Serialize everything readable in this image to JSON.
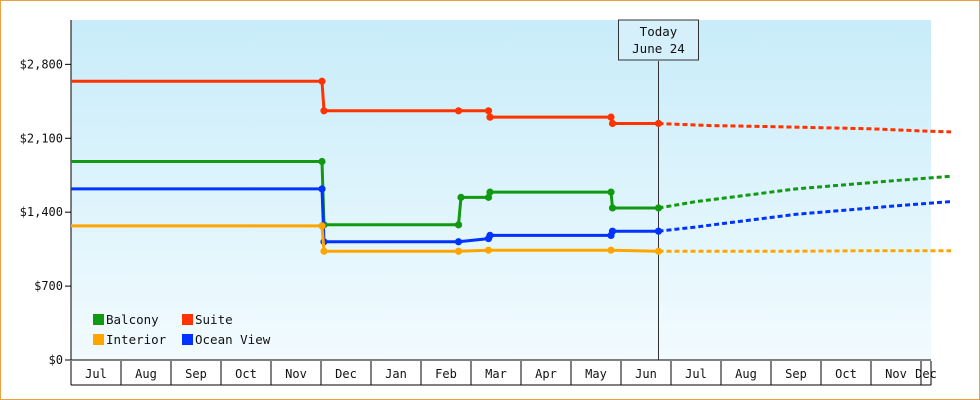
{
  "chart_data": {
    "type": "line",
    "title": "",
    "xlabel": "",
    "ylabel": "",
    "grid": false,
    "legend_placement": "bottom-left",
    "ylim": [
      0,
      3220
    ],
    "y_ticks": [
      {
        "value": 0,
        "label": "$0"
      },
      {
        "value": 700,
        "label": "$700"
      },
      {
        "value": 1400,
        "label": "$1,400"
      },
      {
        "value": 2100,
        "label": "$2,100"
      },
      {
        "value": 2800,
        "label": "$2,800"
      }
    ],
    "x_ticks": [
      "Jul",
      "Aug",
      "Sep",
      "Oct",
      "Nov",
      "Dec",
      "Jan",
      "Feb",
      "Mar",
      "Apr",
      "May",
      "Jun",
      "Jul",
      "Aug",
      "Sep",
      "Oct",
      "Nov",
      "Dec"
    ],
    "today": {
      "line1": "Today",
      "line2": "June 24",
      "x": 11.75
    },
    "series": [
      {
        "name": "Suite",
        "color": "#ff3300",
        "points": [
          [
            0,
            2640
          ],
          [
            5.02,
            2640
          ],
          [
            5.06,
            2360
          ],
          [
            7.75,
            2360
          ],
          [
            8.35,
            2360
          ],
          [
            8.38,
            2300
          ],
          [
            10.8,
            2300
          ],
          [
            10.83,
            2240
          ],
          [
            11.75,
            2240
          ]
        ],
        "forecast": [
          [
            11.75,
            2240
          ],
          [
            12.8,
            2220
          ],
          [
            14,
            2210
          ],
          [
            15,
            2200
          ],
          [
            16,
            2190
          ],
          [
            17,
            2170
          ],
          [
            17.6,
            2160
          ]
        ]
      },
      {
        "name": "Balcony",
        "color": "#119911",
        "points": [
          [
            0,
            1880
          ],
          [
            5.02,
            1880
          ],
          [
            5.06,
            1280
          ],
          [
            7.75,
            1280
          ],
          [
            7.8,
            1540
          ],
          [
            8.35,
            1540
          ],
          [
            8.38,
            1590
          ],
          [
            10.8,
            1590
          ],
          [
            10.83,
            1440
          ],
          [
            11.75,
            1440
          ]
        ],
        "forecast": [
          [
            11.75,
            1440
          ],
          [
            12.5,
            1500
          ],
          [
            13.5,
            1560
          ],
          [
            14.5,
            1620
          ],
          [
            15.5,
            1660
          ],
          [
            16.5,
            1700
          ],
          [
            17.6,
            1740
          ]
        ]
      },
      {
        "name": "Ocean View",
        "color": "#0033ff",
        "points": [
          [
            0,
            1620
          ],
          [
            5.02,
            1620
          ],
          [
            5.06,
            1120
          ],
          [
            7.75,
            1120
          ],
          [
            8.35,
            1150
          ],
          [
            8.38,
            1180
          ],
          [
            10.8,
            1180
          ],
          [
            10.83,
            1220
          ],
          [
            11.75,
            1220
          ]
        ],
        "forecast": [
          [
            11.75,
            1220
          ],
          [
            12.5,
            1260
          ],
          [
            13.5,
            1320
          ],
          [
            14.5,
            1380
          ],
          [
            15.5,
            1420
          ],
          [
            16.5,
            1460
          ],
          [
            17.6,
            1500
          ]
        ]
      },
      {
        "name": "Interior",
        "color": "#ffa500",
        "points": [
          [
            0,
            1270
          ],
          [
            5.02,
            1270
          ],
          [
            5.06,
            1030
          ],
          [
            7.75,
            1030
          ],
          [
            8.35,
            1040
          ],
          [
            10.8,
            1040
          ],
          [
            11.75,
            1030
          ]
        ],
        "forecast": [
          [
            11.75,
            1030
          ],
          [
            13,
            1030
          ],
          [
            14.5,
            1030
          ],
          [
            16,
            1035
          ],
          [
            17.6,
            1035
          ]
        ]
      }
    ],
    "legend": [
      {
        "label": "Balcony",
        "color": "#119911"
      },
      {
        "label": "Suite",
        "color": "#ff3300"
      },
      {
        "label": "Interior",
        "color": "#ffa500"
      },
      {
        "label": "Ocean View",
        "color": "#0033ff"
      }
    ]
  }
}
